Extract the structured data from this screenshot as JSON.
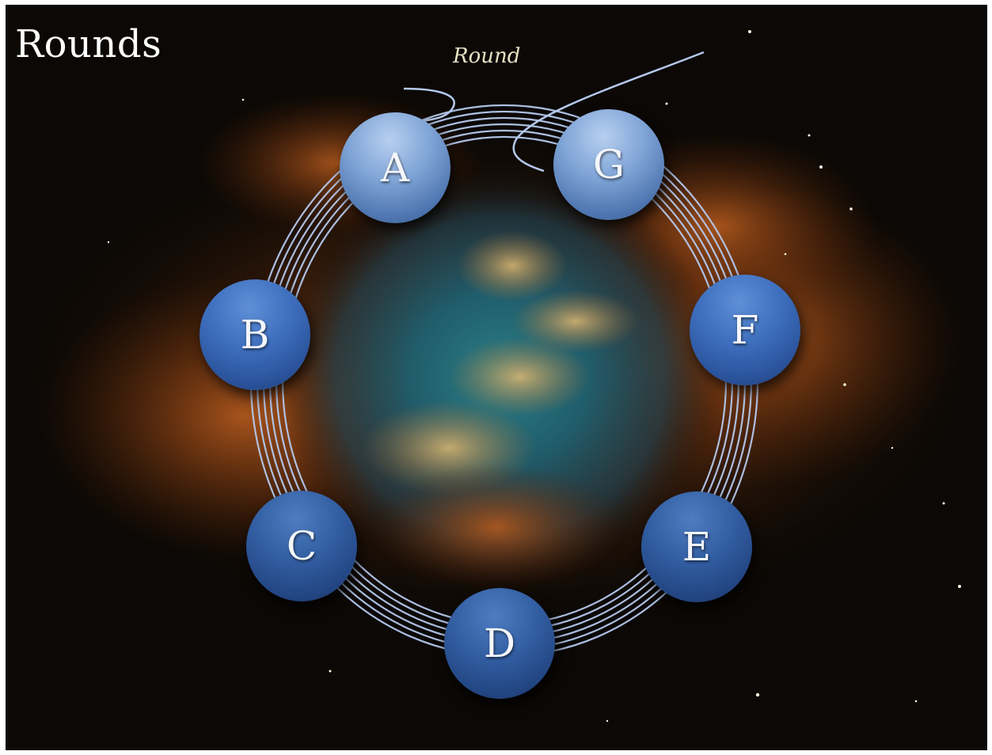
{
  "slide": {
    "title": "Rounds"
  },
  "diagram": {
    "label": "Round",
    "nodes": [
      {
        "id": "a",
        "label": "A"
      },
      {
        "id": "g",
        "label": "G"
      },
      {
        "id": "b",
        "label": "B"
      },
      {
        "id": "f",
        "label": "F"
      },
      {
        "id": "c",
        "label": "C"
      },
      {
        "id": "e",
        "label": "E"
      },
      {
        "id": "d",
        "label": "D"
      }
    ]
  },
  "colors": {
    "ring_stroke": "#b4c8ec",
    "node_light": "#7fa4d6",
    "node_mid": "#3e6fbe",
    "node_dark": "#2a529a",
    "label_color": "#e8e2c4"
  }
}
